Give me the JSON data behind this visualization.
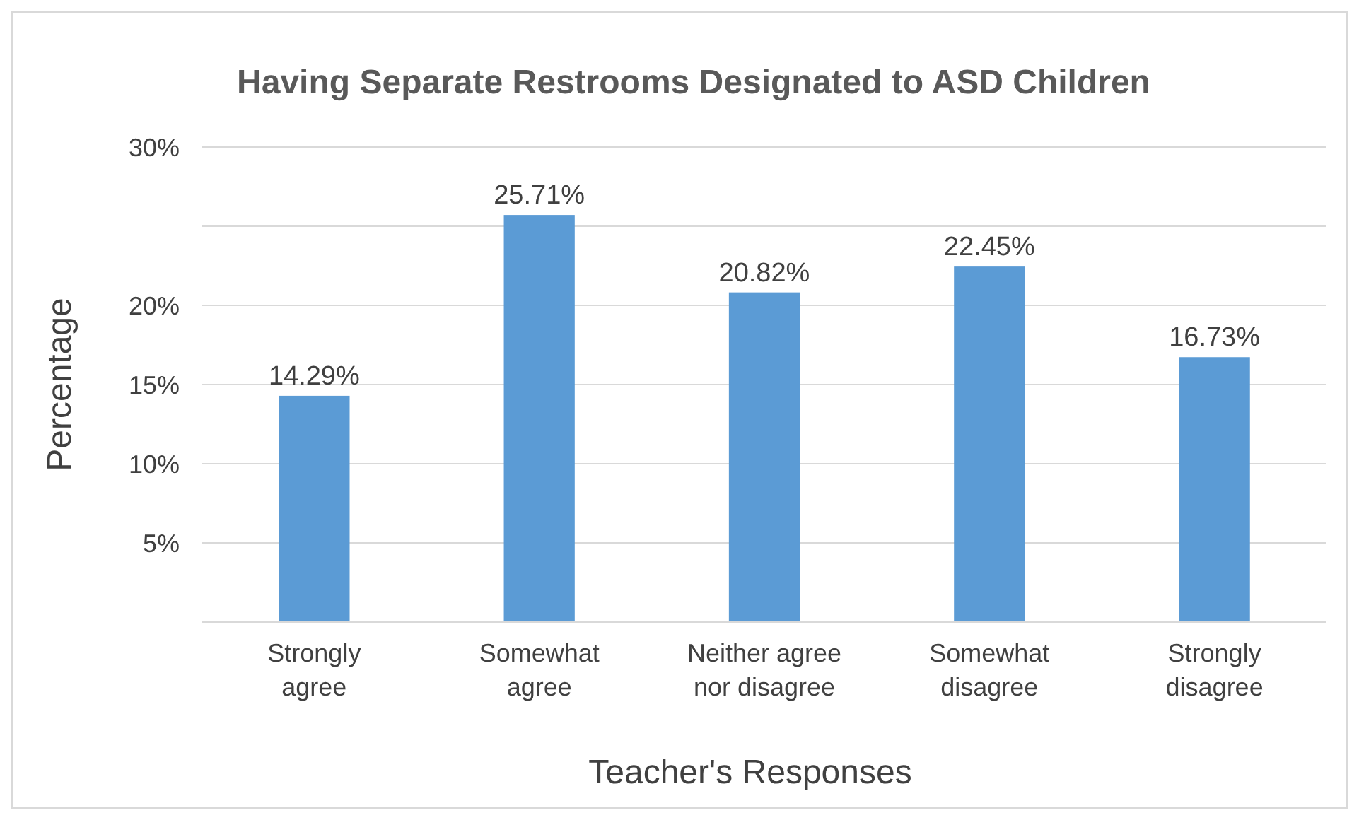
{
  "chart_data": {
    "type": "bar",
    "title": "Having Separate Restrooms Designated to ASD Children",
    "xlabel": "Teacher's Responses",
    "ylabel": "Percentage",
    "categories": [
      "Strongly agree",
      "Somewhat agree",
      "Neither agree nor disagree",
      "Somewhat disagree",
      "Strongly disagree"
    ],
    "values": [
      14.29,
      25.71,
      20.82,
      22.45,
      16.73
    ],
    "value_labels": [
      "14.29%",
      "25.71%",
      "20.82%",
      "22.45%",
      "16.73%"
    ],
    "color": "#5b9bd5",
    "ylim": [
      0,
      30
    ],
    "yticks": [
      {
        "value": 0,
        "label": null
      },
      {
        "value": 5,
        "label": "5%"
      },
      {
        "value": 10,
        "label": "10%"
      },
      {
        "value": 15,
        "label": "15%"
      },
      {
        "value": 20,
        "label": "20%"
      },
      {
        "value": 25,
        "label": null
      },
      {
        "value": 30,
        "label": "30%"
      }
    ],
    "grid": "y"
  }
}
